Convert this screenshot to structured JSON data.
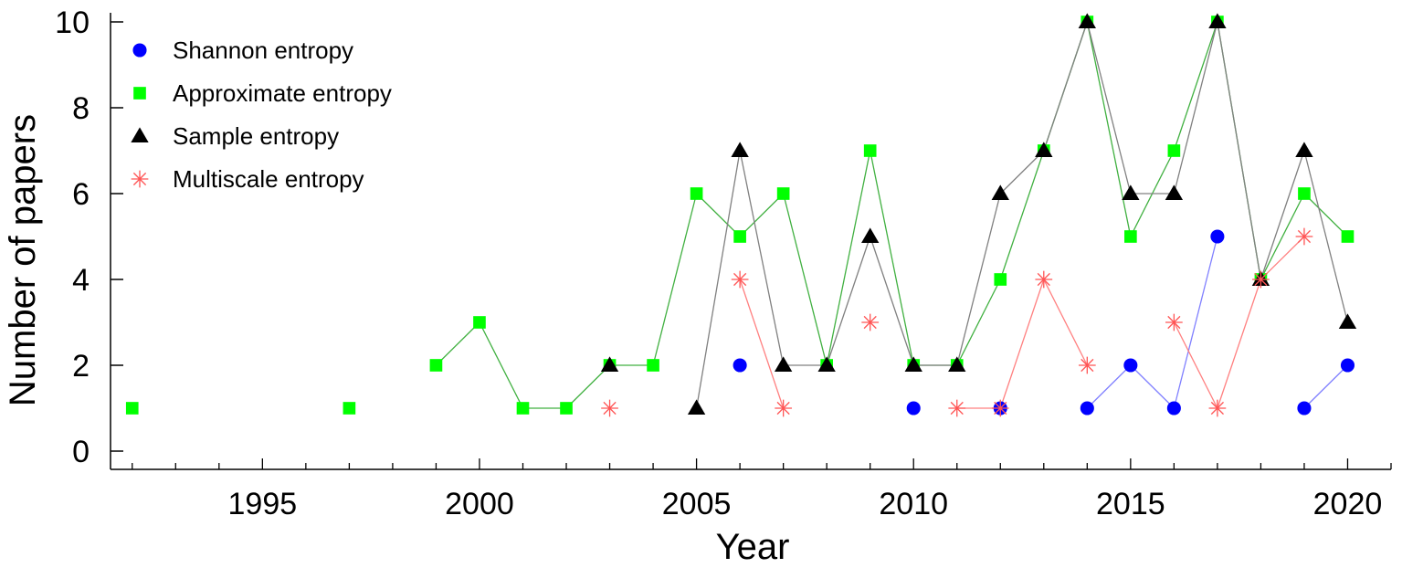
{
  "chart_data": {
    "type": "line",
    "title": "",
    "xlabel": "Year",
    "ylabel": "Number of papers",
    "xlim": [
      1991.5,
      2021
    ],
    "ylim": [
      0,
      10
    ],
    "x_ticks": [
      1995,
      2000,
      2005,
      2010,
      2015,
      2020
    ],
    "y_ticks": [
      0,
      2,
      4,
      6,
      8,
      10
    ],
    "grid": false,
    "legend_position": "top-left",
    "series": [
      {
        "name": "Shannon entropy",
        "color": "#0000ff",
        "line_color": "#8080ff",
        "marker": "circle",
        "points": [
          [
            2006,
            2
          ],
          [
            2010,
            1
          ],
          [
            2012,
            1
          ],
          [
            2014,
            1
          ],
          [
            2015,
            2
          ],
          [
            2016,
            1
          ],
          [
            2017,
            5
          ],
          [
            2019,
            1
          ],
          [
            2020,
            2
          ]
        ],
        "connected_segments": [
          [
            2014,
            2015
          ],
          [
            2015,
            2016
          ],
          [
            2016,
            2017
          ],
          [
            2019,
            2020
          ]
        ]
      },
      {
        "name": "Approximate entropy",
        "color": "#00ff00",
        "line_color": "#40b040",
        "marker": "square",
        "points": [
          [
            1992,
            1
          ],
          [
            1997,
            1
          ],
          [
            1999,
            2
          ],
          [
            2000,
            3
          ],
          [
            2001,
            1
          ],
          [
            2002,
            1
          ],
          [
            2003,
            2
          ],
          [
            2004,
            2
          ],
          [
            2005,
            6
          ],
          [
            2006,
            5
          ],
          [
            2007,
            6
          ],
          [
            2008,
            2
          ],
          [
            2009,
            7
          ],
          [
            2010,
            2
          ],
          [
            2011,
            2
          ],
          [
            2012,
            4
          ],
          [
            2013,
            7
          ],
          [
            2014,
            10
          ],
          [
            2015,
            5
          ],
          [
            2016,
            7
          ],
          [
            2017,
            10
          ],
          [
            2018,
            4
          ],
          [
            2019,
            6
          ],
          [
            2020,
            5
          ]
        ],
        "connected_segments": [
          [
            1999,
            2000
          ],
          [
            2000,
            2001
          ],
          [
            2001,
            2002
          ],
          [
            2002,
            2003
          ],
          [
            2003,
            2004
          ],
          [
            2004,
            2005
          ],
          [
            2005,
            2006
          ],
          [
            2006,
            2007
          ],
          [
            2007,
            2008
          ],
          [
            2008,
            2009
          ],
          [
            2009,
            2010
          ],
          [
            2010,
            2011
          ],
          [
            2011,
            2012
          ],
          [
            2012,
            2013
          ],
          [
            2013,
            2014
          ],
          [
            2014,
            2015
          ],
          [
            2015,
            2016
          ],
          [
            2016,
            2017
          ],
          [
            2017,
            2018
          ],
          [
            2018,
            2019
          ],
          [
            2019,
            2020
          ]
        ]
      },
      {
        "name": "Sample entropy",
        "color": "#000000",
        "line_color": "#808080",
        "marker": "triangle",
        "points": [
          [
            2003,
            2
          ],
          [
            2005,
            1
          ],
          [
            2006,
            7
          ],
          [
            2007,
            2
          ],
          [
            2008,
            2
          ],
          [
            2009,
            5
          ],
          [
            2010,
            2
          ],
          [
            2011,
            2
          ],
          [
            2012,
            6
          ],
          [
            2013,
            7
          ],
          [
            2014,
            10
          ],
          [
            2015,
            6
          ],
          [
            2016,
            6
          ],
          [
            2017,
            10
          ],
          [
            2018,
            4
          ],
          [
            2019,
            7
          ],
          [
            2020,
            3
          ]
        ],
        "connected_segments": [
          [
            2005,
            2006
          ],
          [
            2006,
            2007
          ],
          [
            2007,
            2008
          ],
          [
            2008,
            2009
          ],
          [
            2009,
            2010
          ],
          [
            2010,
            2011
          ],
          [
            2011,
            2012
          ],
          [
            2012,
            2013
          ],
          [
            2013,
            2014
          ],
          [
            2014,
            2015
          ],
          [
            2015,
            2016
          ],
          [
            2016,
            2017
          ],
          [
            2017,
            2018
          ],
          [
            2018,
            2019
          ],
          [
            2019,
            2020
          ]
        ]
      },
      {
        "name": "Multiscale entropy",
        "color": "#ff5555",
        "line_color": "#ff8080",
        "marker": "asterisk",
        "points": [
          [
            2003,
            1
          ],
          [
            2006,
            4
          ],
          [
            2007,
            1
          ],
          [
            2009,
            3
          ],
          [
            2011,
            1
          ],
          [
            2012,
            1
          ],
          [
            2013,
            4
          ],
          [
            2014,
            2
          ],
          [
            2016,
            3
          ],
          [
            2017,
            1
          ],
          [
            2018,
            4
          ],
          [
            2019,
            5
          ]
        ],
        "connected_segments": [
          [
            2006,
            2007
          ],
          [
            2011,
            2012
          ],
          [
            2012,
            2013
          ],
          [
            2013,
            2014
          ],
          [
            2016,
            2017
          ],
          [
            2017,
            2018
          ],
          [
            2018,
            2019
          ]
        ]
      }
    ]
  }
}
